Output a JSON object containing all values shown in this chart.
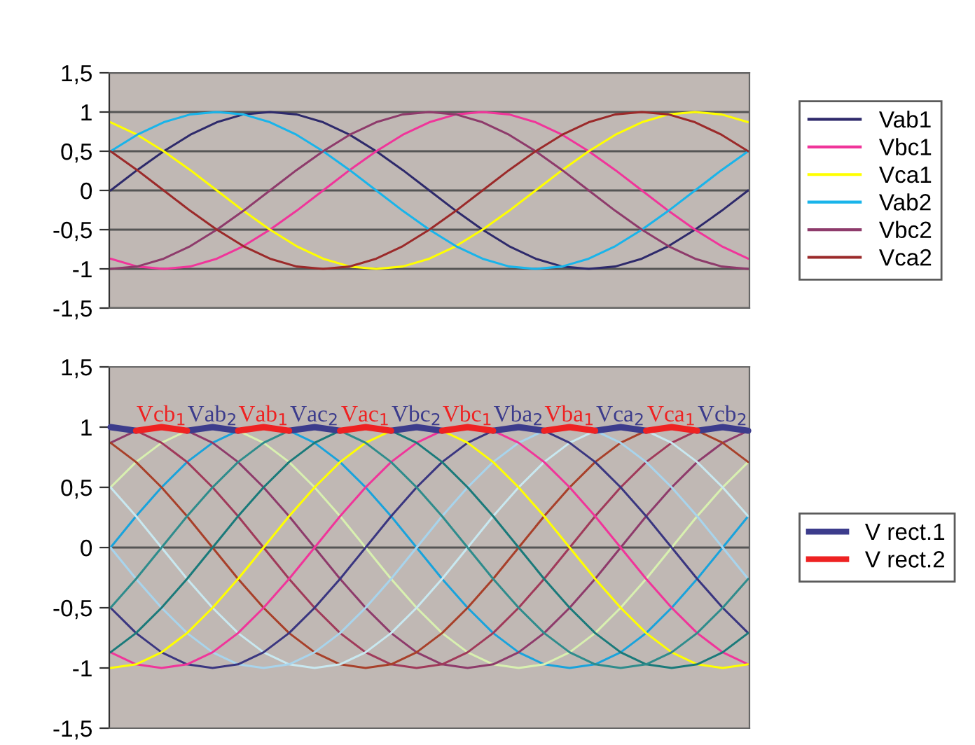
{
  "chart_data": [
    {
      "type": "line",
      "categories": [
        null,
        null,
        null,
        null,
        null,
        null,
        null,
        null,
        null,
        null,
        null,
        null,
        null,
        null,
        null,
        null,
        null,
        null,
        null,
        null,
        null,
        null,
        null,
        null,
        null
      ],
      "ylim": [
        -1.5,
        1.5
      ],
      "yticks": [
        {
          "value": -1.5,
          "label": "-1,5"
        },
        -1,
        {
          "value": -0.5,
          "label": "-0,5"
        },
        0,
        {
          "value": 0.5,
          "label": "0,5"
        },
        1,
        {
          "value": 1.5,
          "label": "1,5"
        }
      ],
      "grid": "y",
      "legend": "right",
      "tick_labels": "y",
      "marker": "none",
      "series": [
        {
          "name": "Vab1",
          "color": "#2e2a6b",
          "values": [
            0,
            0.26,
            0.5,
            0.71,
            0.87,
            0.97,
            1,
            0.97,
            0.87,
            0.71,
            0.5,
            0.26,
            0,
            -0.26,
            -0.5,
            -0.71,
            -0.87,
            -0.97,
            -1,
            -0.97,
            -0.87,
            -0.71,
            -0.5,
            -0.26,
            0
          ]
        },
        {
          "name": "Vbc1",
          "color": "#f0359a",
          "values": [
            -0.87,
            -0.97,
            -1,
            -0.97,
            -0.87,
            -0.71,
            -0.5,
            -0.26,
            0,
            0.26,
            0.5,
            0.71,
            0.87,
            0.97,
            1,
            0.97,
            0.87,
            0.71,
            0.5,
            0.26,
            0,
            -0.26,
            -0.5,
            -0.71,
            -0.87
          ]
        },
        {
          "name": "Vca1",
          "color": "#ffff00",
          "values": [
            0.87,
            0.71,
            0.5,
            0.26,
            0,
            -0.26,
            -0.5,
            -0.71,
            -0.87,
            -0.97,
            -1,
            -0.97,
            -0.87,
            -0.71,
            -0.5,
            -0.26,
            0,
            0.26,
            0.5,
            0.71,
            0.87,
            0.97,
            1,
            0.97,
            0.87
          ]
        },
        {
          "name": "Vab2",
          "color": "#19b4ea",
          "values": [
            0.5,
            0.71,
            0.87,
            0.97,
            1,
            0.97,
            0.87,
            0.71,
            0.5,
            0.26,
            0,
            -0.26,
            -0.5,
            -0.71,
            -0.87,
            -0.97,
            -1,
            -0.97,
            -0.87,
            -0.71,
            -0.5,
            -0.26,
            0,
            0.26,
            0.5
          ]
        },
        {
          "name": "Vbc2",
          "color": "#8e3b6b",
          "values": [
            -1,
            -0.97,
            -0.87,
            -0.71,
            -0.5,
            -0.26,
            0,
            0.26,
            0.5,
            0.71,
            0.87,
            0.97,
            1,
            0.97,
            0.87,
            0.71,
            0.5,
            0.26,
            0,
            -0.26,
            -0.5,
            -0.71,
            -0.87,
            -0.97,
            -1
          ]
        },
        {
          "name": "Vca2",
          "color": "#9b2a2a",
          "values": [
            0.5,
            0.26,
            0,
            -0.26,
            -0.5,
            -0.71,
            -0.87,
            -0.97,
            -1,
            -0.97,
            -0.87,
            -0.71,
            -0.5,
            -0.26,
            0,
            0.26,
            0.5,
            0.71,
            0.87,
            0.97,
            1,
            0.97,
            0.87,
            0.71,
            0.5
          ]
        }
      ]
    },
    {
      "type": "line",
      "categories": [
        null,
        null,
        null,
        null,
        null,
        null,
        null,
        null,
        null,
        null,
        null,
        null,
        null,
        null,
        null,
        null,
        null,
        null,
        null,
        null,
        null,
        null,
        null,
        null,
        null,
        null
      ],
      "ylim": [
        -1.5,
        1.5
      ],
      "yticks": [
        {
          "value": -1.5,
          "label": "-1,5"
        },
        -1,
        {
          "value": -0.5,
          "label": "-0,5"
        },
        0,
        {
          "value": 0.5,
          "label": "0,5"
        },
        1,
        {
          "value": 1.5,
          "label": "1,5"
        }
      ],
      "ref_lines": [
        {
          "axis": "y",
          "value": 0,
          "color": "#555555"
        }
      ],
      "legend": "right",
      "tick_labels": "y",
      "marker": "none",
      "series": [
        {
          "color": "#19a3dc",
          "values": [
            0,
            0.26,
            0.5,
            0.71,
            0.87,
            0.97,
            1,
            0.97,
            0.87,
            0.71,
            0.5,
            0.26,
            0,
            -0.26,
            -0.5,
            -0.71,
            -0.87,
            -0.97,
            -1,
            -0.97,
            -0.87,
            -0.71,
            -0.5,
            -0.26,
            0,
            0.26
          ]
        },
        {
          "color": "#d8f0b0",
          "values": [
            0.5,
            0.71,
            0.87,
            0.97,
            1,
            0.97,
            0.87,
            0.71,
            0.5,
            0.26,
            0,
            -0.26,
            -0.5,
            -0.71,
            -0.87,
            -0.97,
            -1,
            -0.97,
            -0.87,
            -0.71,
            -0.5,
            -0.26,
            0,
            0.26,
            0.5,
            0.71
          ]
        },
        {
          "color": "#8e3b6b",
          "values": [
            0.87,
            0.97,
            1,
            0.97,
            0.87,
            0.71,
            0.5,
            0.26,
            0,
            -0.26,
            -0.5,
            -0.71,
            -0.87,
            -0.97,
            -1,
            -0.97,
            -0.87,
            -0.71,
            -0.5,
            -0.26,
            0,
            0.26,
            0.5,
            0.71,
            0.87,
            0.97
          ]
        },
        {
          "color": "#a03a5a",
          "values": [
            1,
            0.97,
            0.87,
            0.71,
            0.5,
            0.26,
            0,
            -0.26,
            -0.5,
            -0.71,
            -0.87,
            -0.97,
            -1,
            -0.97,
            -0.87,
            -0.71,
            -0.5,
            -0.26,
            0,
            0.26,
            0.5,
            0.71,
            0.87,
            0.97,
            1,
            0.97
          ]
        },
        {
          "color": "#a8402a",
          "values": [
            0.87,
            0.71,
            0.5,
            0.26,
            0,
            -0.26,
            -0.5,
            -0.71,
            -0.87,
            -0.97,
            -1,
            -0.97,
            -0.87,
            -0.71,
            -0.5,
            -0.26,
            0,
            0.26,
            0.5,
            0.71,
            0.87,
            0.97,
            1,
            0.97,
            0.87,
            0.71
          ]
        },
        {
          "color": "#c8e8f0",
          "values": [
            0.5,
            0.26,
            0,
            -0.26,
            -0.5,
            -0.71,
            -0.87,
            -0.97,
            -1,
            -0.97,
            -0.87,
            -0.71,
            -0.5,
            -0.26,
            0,
            0.26,
            0.5,
            0.71,
            0.87,
            0.97,
            1,
            0.97,
            0.87,
            0.71,
            0.5,
            0.26
          ]
        },
        {
          "color": "#a8d4ec",
          "values": [
            0,
            -0.26,
            -0.5,
            -0.71,
            -0.87,
            -0.97,
            -1,
            -0.97,
            -0.87,
            -0.71,
            -0.5,
            -0.26,
            0,
            0.26,
            0.5,
            0.71,
            0.87,
            0.97,
            1,
            0.97,
            0.87,
            0.71,
            0.5,
            0.26,
            0,
            -0.26
          ]
        },
        {
          "color": "#3a3680",
          "values": [
            -0.5,
            -0.71,
            -0.87,
            -0.97,
            -1,
            -0.97,
            -0.87,
            -0.71,
            -0.5,
            -0.26,
            0,
            0.26,
            0.5,
            0.71,
            0.87,
            0.97,
            1,
            0.97,
            0.87,
            0.71,
            0.5,
            0.26,
            0,
            -0.26,
            -0.5,
            -0.71
          ]
        },
        {
          "color": "#f0359a",
          "values": [
            -0.87,
            -0.97,
            -1,
            -0.97,
            -0.87,
            -0.71,
            -0.5,
            -0.26,
            0,
            0.26,
            0.5,
            0.71,
            0.87,
            0.97,
            1,
            0.97,
            0.87,
            0.71,
            0.5,
            0.26,
            0,
            -0.26,
            -0.5,
            -0.71,
            -0.87,
            -0.97
          ]
        },
        {
          "color": "#ffff00",
          "values": [
            -1,
            -0.97,
            -0.87,
            -0.71,
            -0.5,
            -0.26,
            0,
            0.26,
            0.5,
            0.71,
            0.87,
            0.97,
            1,
            0.97,
            0.87,
            0.71,
            0.5,
            0.26,
            0,
            -0.26,
            -0.5,
            -0.71,
            -0.87,
            -0.97,
            -1,
            -0.97
          ]
        },
        {
          "color": "#1a7a7a",
          "values": [
            -0.87,
            -0.71,
            -0.5,
            -0.26,
            0,
            0.26,
            0.5,
            0.71,
            0.87,
            0.97,
            1,
            0.97,
            0.87,
            0.71,
            0.5,
            0.26,
            0,
            -0.26,
            -0.5,
            -0.71,
            -0.87,
            -0.97,
            -1,
            -0.97,
            -0.87,
            -0.71
          ]
        },
        {
          "color": "#2f8c8c",
          "values": [
            -0.5,
            -0.26,
            0,
            0.26,
            0.5,
            0.71,
            0.87,
            0.97,
            1,
            0.97,
            0.87,
            0.71,
            0.5,
            0.26,
            0,
            -0.26,
            -0.5,
            -0.71,
            -0.87,
            -0.97,
            -1,
            -0.97,
            -0.87,
            -0.71,
            -0.5,
            -0.26
          ]
        },
        {
          "name": "V rect.1",
          "color": "#3c3c8c",
          "values": [
            1,
            0.97,
            null,
            0.97,
            1,
            0.97,
            null,
            0.97,
            1,
            0.97,
            null,
            0.97,
            1,
            0.97,
            null,
            0.97,
            1,
            0.97,
            null,
            0.97,
            1,
            0.97,
            null,
            0.97,
            1,
            0.97
          ],
          "line_style": "solid"
        },
        {
          "name": "V rect.2",
          "color": "#ee2222",
          "values": [
            null,
            0.97,
            1,
            0.97,
            null,
            0.97,
            1,
            0.97,
            null,
            0.97,
            1,
            0.97,
            null,
            0.97,
            1,
            0.97,
            null,
            0.97,
            1,
            0.97,
            null,
            0.97,
            1,
            0.97,
            null,
            null
          ],
          "line_style": "solid"
        }
      ],
      "annotations": [
        "Vcb$_{1}$",
        "Vab$_{2}$",
        "Vab$_{1}$",
        "Vac$_{2}$",
        "Vac$_{1}$",
        "Vbc$_{2}$",
        "Vbc$_{1}$",
        "Vba$_{2}$",
        "Vba$_{1}$",
        "Vca$_{2}$",
        "Vca$_{1}$",
        "Vcb$_{2}$"
      ]
    }
  ]
}
